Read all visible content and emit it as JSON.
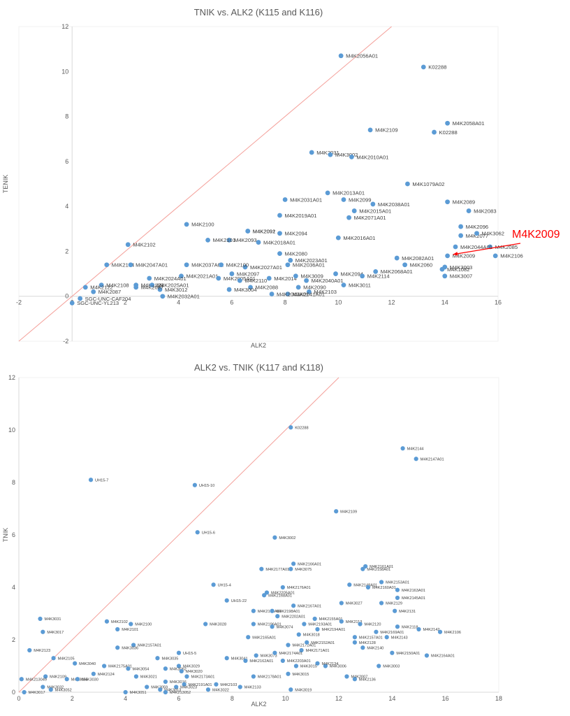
{
  "chart_data": [
    {
      "type": "scatter",
      "title": "TNIK vs. ALK2 (K115 and K116)",
      "xlabel": "ALK2",
      "ylabel": "TENIK",
      "xlim": [
        -2,
        16
      ],
      "ylim": [
        -2,
        12
      ],
      "xticks": [
        "-2",
        "0",
        "2",
        "4",
        "6",
        "8",
        "10",
        "12",
        "14",
        "16"
      ],
      "yticks": [
        "-2",
        "0",
        "2",
        "4",
        "6",
        "8",
        "10",
        "12"
      ],
      "grid": false,
      "legend": "none",
      "reference_line": "y = x",
      "marker_color": "#5b9bd5",
      "line_color": "#f4a09a",
      "annotation": {
        "text": "M4K2009",
        "color": "#ff0000",
        "x": 14.1,
        "y": 1.8
      },
      "points": [
        {
          "x": 10.1,
          "y": 10.7,
          "label": "M4K2056A01"
        },
        {
          "x": 13.2,
          "y": 10.2,
          "label": "K02288"
        },
        {
          "x": 14.1,
          "y": 7.7,
          "label": "M4K2058A01"
        },
        {
          "x": 11.2,
          "y": 7.4,
          "label": "M4K2109"
        },
        {
          "x": 13.6,
          "y": 7.3,
          "label": "K02288"
        },
        {
          "x": 9.0,
          "y": 6.4,
          "label": "M4K2031"
        },
        {
          "x": 9.7,
          "y": 6.3,
          "label": "M4K3002"
        },
        {
          "x": 10.5,
          "y": 6.2,
          "label": "M4K2010A01"
        },
        {
          "x": 12.6,
          "y": 5.0,
          "label": "M4K1079A02"
        },
        {
          "x": 9.6,
          "y": 4.6,
          "label": "M4K2013A01"
        },
        {
          "x": 8.0,
          "y": 4.3,
          "label": "M4K2031A01"
        },
        {
          "x": 10.2,
          "y": 4.3,
          "label": "M4K2099"
        },
        {
          "x": 14.1,
          "y": 4.2,
          "label": "M4K2089"
        },
        {
          "x": 11.3,
          "y": 4.1,
          "label": "M4K2038A01"
        },
        {
          "x": 10.6,
          "y": 3.8,
          "label": "M4K2015A01"
        },
        {
          "x": 14.9,
          "y": 3.8,
          "label": "M4K2083"
        },
        {
          "x": 7.8,
          "y": 3.6,
          "label": "M4K2019A01"
        },
        {
          "x": 10.4,
          "y": 3.5,
          "label": "M4K2071A01"
        },
        {
          "x": 4.3,
          "y": 3.2,
          "label": "M4K2100"
        },
        {
          "x": 6.6,
          "y": 2.9,
          "label": "M4K2092"
        },
        {
          "x": 6.6,
          "y": 2.9,
          "label": "M4K2091"
        },
        {
          "x": 7.8,
          "y": 2.8,
          "label": "M4K2094"
        },
        {
          "x": 14.6,
          "y": 3.1,
          "label": "M4K2096"
        },
        {
          "x": 5.9,
          "y": 2.5,
          "label": "M4K2093"
        },
        {
          "x": 10.0,
          "y": 2.6,
          "label": "M4K2016A01"
        },
        {
          "x": 14.6,
          "y": 2.7,
          "label": "M4K2077"
        },
        {
          "x": 5.1,
          "y": 2.5,
          "label": "M4K2101"
        },
        {
          "x": 7.0,
          "y": 2.4,
          "label": "M4K2018A01"
        },
        {
          "x": 15.2,
          "y": 2.8,
          "label": "M4K3062"
        },
        {
          "x": 2.1,
          "y": 2.3,
          "label": "M4K2102"
        },
        {
          "x": 15.7,
          "y": 2.2,
          "label": "M4K2085"
        },
        {
          "x": 14.4,
          "y": 2.2,
          "label": "M4K2044A01"
        },
        {
          "x": 15.9,
          "y": 1.8,
          "label": "M4K2106"
        },
        {
          "x": 7.8,
          "y": 1.9,
          "label": "M4K2080"
        },
        {
          "x": 14.1,
          "y": 1.8,
          "label": "M4K2009"
        },
        {
          "x": 12.2,
          "y": 1.7,
          "label": "M4K2082A01"
        },
        {
          "x": 8.2,
          "y": 1.6,
          "label": "M4K2023A01"
        },
        {
          "x": 12.5,
          "y": 1.4,
          "label": "M4K2060"
        },
        {
          "x": 14.0,
          "y": 1.3,
          "label": "M4K3003"
        },
        {
          "x": 8.1,
          "y": 1.4,
          "label": "M4K2036A01"
        },
        {
          "x": 6.5,
          "y": 1.3,
          "label": "M4K2027A01"
        },
        {
          "x": 13.9,
          "y": 1.2,
          "label": "M4K1082"
        },
        {
          "x": 1.3,
          "y": 1.4,
          "label": "M4K2104"
        },
        {
          "x": 2.2,
          "y": 1.4,
          "label": "M4K2047A01"
        },
        {
          "x": 4.3,
          "y": 1.4,
          "label": "M4K2037A01"
        },
        {
          "x": 5.6,
          "y": 1.4,
          "label": "M4K2100"
        },
        {
          "x": 11.4,
          "y": 1.1,
          "label": "M4K2068A01"
        },
        {
          "x": 9.9,
          "y": 1.0,
          "label": "M4K2094"
        },
        {
          "x": 6.0,
          "y": 1.0,
          "label": "M4K2097"
        },
        {
          "x": 4.1,
          "y": 0.9,
          "label": "M4K2021A01"
        },
        {
          "x": 10.9,
          "y": 0.9,
          "label": "M4K2114"
        },
        {
          "x": 2.9,
          "y": 0.8,
          "label": "M4K2024A01"
        },
        {
          "x": 5.5,
          "y": 0.8,
          "label": "M4K2005A01"
        },
        {
          "x": 7.4,
          "y": 0.8,
          "label": "M4K2014"
        },
        {
          "x": 8.8,
          "y": 0.7,
          "label": "M4K2040A01"
        },
        {
          "x": 14.0,
          "y": 0.9,
          "label": "M4K3007"
        },
        {
          "x": 8.4,
          "y": 0.9,
          "label": "M4K3009"
        },
        {
          "x": 1.1,
          "y": 0.5,
          "label": "M4K2108"
        },
        {
          "x": 2.4,
          "y": 0.5,
          "label": "M4K2129"
        },
        {
          "x": 3.0,
          "y": 0.5,
          "label": "M4K2025A01"
        },
        {
          "x": 6.3,
          "y": 0.7,
          "label": "M4K2110"
        },
        {
          "x": 10.2,
          "y": 0.5,
          "label": "M4K3011"
        },
        {
          "x": 8.5,
          "y": 0.4,
          "label": "M4K2090"
        },
        {
          "x": 0.5,
          "y": 0.4,
          "label": "M4K2122"
        },
        {
          "x": 6.7,
          "y": 0.4,
          "label": "M4K2088"
        },
        {
          "x": 5.9,
          "y": 0.3,
          "label": "M4K3004"
        },
        {
          "x": 3.3,
          "y": 0.3,
          "label": "M4K3012"
        },
        {
          "x": 2.4,
          "y": 0.4,
          "label": "M4K2087"
        },
        {
          "x": 0.8,
          "y": 0.2,
          "label": "M4K2087"
        },
        {
          "x": 8.9,
          "y": 0.2,
          "label": "M4K2103"
        },
        {
          "x": 8.1,
          "y": 0.1,
          "label": "M4K2041A01"
        },
        {
          "x": 7.5,
          "y": 0.1,
          "label": "M4K2043A01"
        },
        {
          "x": 3.4,
          "y": 0.0,
          "label": "M4K2032A01"
        },
        {
          "x": 0.3,
          "y": -0.1,
          "label": "SGC-UNC-CAF204"
        },
        {
          "x": 0.0,
          "y": -0.3,
          "label": "SGC-UNC-YL213"
        }
      ]
    },
    {
      "type": "scatter",
      "title": "ALK2 vs. TNIK (K117 and K118)",
      "xlabel": "ALK2",
      "ylabel": "TNIK",
      "xlim": [
        0,
        18
      ],
      "ylim": [
        0,
        12
      ],
      "xticks": [
        "0",
        "2",
        "4",
        "6",
        "8",
        "10",
        "12",
        "14",
        "16",
        "18"
      ],
      "yticks": [
        "0",
        "2",
        "4",
        "6",
        "8",
        "10",
        "12"
      ],
      "grid": false,
      "legend": "none",
      "reference_line": "y = x",
      "marker_color": "#5b9bd5",
      "line_color": "#f4a09a",
      "points": [
        {
          "x": 10.2,
          "y": 10.1,
          "label": "K02288"
        },
        {
          "x": 14.4,
          "y": 9.3,
          "label": "M4K2144"
        },
        {
          "x": 14.9,
          "y": 8.9,
          "label": "M4K2147A01"
        },
        {
          "x": 2.7,
          "y": 8.1,
          "label": "UH15-7"
        },
        {
          "x": 6.6,
          "y": 7.9,
          "label": "UH15-10"
        },
        {
          "x": 11.9,
          "y": 6.9,
          "label": "M4K2109"
        },
        {
          "x": 6.7,
          "y": 6.1,
          "label": "UH15-6"
        },
        {
          "x": 9.6,
          "y": 5.9,
          "label": "M4K3002"
        },
        {
          "x": 10.3,
          "y": 4.9,
          "label": "M4K2166A01"
        },
        {
          "x": 10.2,
          "y": 4.7,
          "label": "M4K3075"
        },
        {
          "x": 9.1,
          "y": 4.7,
          "label": "M4K2177A01"
        },
        {
          "x": 13.0,
          "y": 4.8,
          "label": "M4K2161A01"
        },
        {
          "x": 12.9,
          "y": 4.7,
          "label": "M4K2158A01"
        },
        {
          "x": 13.6,
          "y": 4.2,
          "label": "M4K2153A01"
        },
        {
          "x": 12.4,
          "y": 4.1,
          "label": "M4K2148A01"
        },
        {
          "x": 13.1,
          "y": 4.0,
          "label": "M4K2160A01"
        },
        {
          "x": 7.3,
          "y": 4.1,
          "label": "UH15-4"
        },
        {
          "x": 9.9,
          "y": 4.0,
          "label": "M4K2176A01"
        },
        {
          "x": 9.3,
          "y": 3.8,
          "label": "M4K2205A01"
        },
        {
          "x": 14.2,
          "y": 3.9,
          "label": "M4K2163A01"
        },
        {
          "x": 9.2,
          "y": 3.7,
          "label": "M4K2168A01"
        },
        {
          "x": 7.8,
          "y": 3.5,
          "label": "UH15-22"
        },
        {
          "x": 14.2,
          "y": 3.6,
          "label": "M4K2145A01"
        },
        {
          "x": 13.6,
          "y": 3.4,
          "label": "M4K2129"
        },
        {
          "x": 12.1,
          "y": 3.4,
          "label": "M4K3027"
        },
        {
          "x": 10.3,
          "y": 3.3,
          "label": "M4K2167A01"
        },
        {
          "x": 8.8,
          "y": 3.1,
          "label": "M4K2195A01"
        },
        {
          "x": 9.5,
          "y": 3.1,
          "label": "M4K2198A01"
        },
        {
          "x": 14.1,
          "y": 3.1,
          "label": "M4K2131"
        },
        {
          "x": 9.7,
          "y": 2.9,
          "label": "M4K2202A01"
        },
        {
          "x": 11.1,
          "y": 2.8,
          "label": "M4K2155A01"
        },
        {
          "x": 12.1,
          "y": 2.7,
          "label": "M4K2113"
        },
        {
          "x": 10.7,
          "y": 2.6,
          "label": "M4K2193A01"
        },
        {
          "x": 8.8,
          "y": 2.6,
          "label": "M4K2196A01"
        },
        {
          "x": 9.5,
          "y": 2.5,
          "label": "M4K3074"
        },
        {
          "x": 3.3,
          "y": 2.7,
          "label": "M4K2102"
        },
        {
          "x": 4.2,
          "y": 2.6,
          "label": "M4K2100"
        },
        {
          "x": 0.8,
          "y": 2.8,
          "label": "M4K3031"
        },
        {
          "x": 7.0,
          "y": 2.6,
          "label": "M4K3028"
        },
        {
          "x": 12.8,
          "y": 2.6,
          "label": "M4K2120"
        },
        {
          "x": 11.2,
          "y": 2.4,
          "label": "M4K2194A01"
        },
        {
          "x": 14.2,
          "y": 2.5,
          "label": "M4K2118"
        },
        {
          "x": 15.0,
          "y": 2.4,
          "label": "M4K2142"
        },
        {
          "x": 15.8,
          "y": 2.3,
          "label": "M4K2106"
        },
        {
          "x": 13.4,
          "y": 2.3,
          "label": "M4K2169A01"
        },
        {
          "x": 3.7,
          "y": 2.4,
          "label": "M4K2101"
        },
        {
          "x": 0.9,
          "y": 2.3,
          "label": "M4K3017"
        },
        {
          "x": 10.5,
          "y": 2.2,
          "label": "M4K3018"
        },
        {
          "x": 12.6,
          "y": 2.1,
          "label": "M4K2157A01"
        },
        {
          "x": 13.8,
          "y": 2.1,
          "label": "M4K2143"
        },
        {
          "x": 8.6,
          "y": 2.1,
          "label": "M4K2165A01"
        },
        {
          "x": 12.6,
          "y": 1.9,
          "label": "M4K2128"
        },
        {
          "x": 10.1,
          "y": 1.8,
          "label": "M4K2172A01"
        },
        {
          "x": 10.8,
          "y": 1.9,
          "label": "M4K2152A01"
        },
        {
          "x": 4.3,
          "y": 1.8,
          "label": "M4K2157A01"
        },
        {
          "x": 3.7,
          "y": 1.7,
          "label": "M4K3036"
        },
        {
          "x": 12.9,
          "y": 1.7,
          "label": "M4K2140"
        },
        {
          "x": 10.6,
          "y": 1.6,
          "label": "M4K2171A01"
        },
        {
          "x": 14.0,
          "y": 1.5,
          "label": "M4K2150A01"
        },
        {
          "x": 15.3,
          "y": 1.4,
          "label": "M4K2164A01"
        },
        {
          "x": 0.4,
          "y": 1.6,
          "label": "M4K2123"
        },
        {
          "x": 6.0,
          "y": 1.5,
          "label": "UH15-5"
        },
        {
          "x": 8.9,
          "y": 1.4,
          "label": "M4K3073"
        },
        {
          "x": 9.6,
          "y": 1.5,
          "label": "M4K2174A01"
        },
        {
          "x": 5.2,
          "y": 1.3,
          "label": "M4K3035"
        },
        {
          "x": 7.8,
          "y": 1.3,
          "label": "M4K3041"
        },
        {
          "x": 1.3,
          "y": 1.3,
          "label": "M4K2105"
        },
        {
          "x": 9.9,
          "y": 1.2,
          "label": "M4K2203A01"
        },
        {
          "x": 2.1,
          "y": 1.1,
          "label": "M4K3040"
        },
        {
          "x": 3.2,
          "y": 1.0,
          "label": "M4K2175A01"
        },
        {
          "x": 6.0,
          "y": 1.0,
          "label": "M4K3029"
        },
        {
          "x": 13.5,
          "y": 1.0,
          "label": "M4K3003"
        },
        {
          "x": 11.5,
          "y": 1.0,
          "label": "M4K3006"
        },
        {
          "x": 11.2,
          "y": 1.1,
          "label": "M4K2134"
        },
        {
          "x": 8.5,
          "y": 1.2,
          "label": "M4K2162A01"
        },
        {
          "x": 10.4,
          "y": 1.0,
          "label": "M4K3015"
        },
        {
          "x": 5.5,
          "y": 0.9,
          "label": "M4K3062"
        },
        {
          "x": 6.1,
          "y": 0.8,
          "label": "M4K3020"
        },
        {
          "x": 10.1,
          "y": 0.7,
          "label": "M4K3015"
        },
        {
          "x": 4.1,
          "y": 0.9,
          "label": "M4K3054"
        },
        {
          "x": 2.8,
          "y": 0.7,
          "label": "M4K2124"
        },
        {
          "x": 4.4,
          "y": 0.6,
          "label": "M4K3021"
        },
        {
          "x": 6.3,
          "y": 0.6,
          "label": "M4K2173A01"
        },
        {
          "x": 8.8,
          "y": 0.6,
          "label": "M4K2178A01"
        },
        {
          "x": 12.3,
          "y": 0.6,
          "label": "M4K2007"
        },
        {
          "x": 12.6,
          "y": 0.5,
          "label": "M4K2136"
        },
        {
          "x": 1.0,
          "y": 0.6,
          "label": "M4K2109"
        },
        {
          "x": 1.8,
          "y": 0.5,
          "label": "M4K3055"
        },
        {
          "x": 0.1,
          "y": 0.5,
          "label": "M4K213049"
        },
        {
          "x": 2.2,
          "y": 0.5,
          "label": "M4K3030"
        },
        {
          "x": 5.5,
          "y": 0.4,
          "label": "M4K3016"
        },
        {
          "x": 7.4,
          "y": 0.3,
          "label": "M4K2103"
        },
        {
          "x": 6.2,
          "y": 0.3,
          "label": "M4K2191A01"
        },
        {
          "x": 4.8,
          "y": 0.2,
          "label": "M4K3059"
        },
        {
          "x": 5.9,
          "y": 0.2,
          "label": "M4K3023"
        },
        {
          "x": 0.9,
          "y": 0.2,
          "label": "M4K3032"
        },
        {
          "x": 1.2,
          "y": 0.1,
          "label": "M4K3052"
        },
        {
          "x": 8.3,
          "y": 0.2,
          "label": "M4K2133"
        },
        {
          "x": 7.1,
          "y": 0.1,
          "label": "M4K3022"
        },
        {
          "x": 10.2,
          "y": 0.1,
          "label": "M4K3019"
        },
        {
          "x": 4.0,
          "y": 0.0,
          "label": "M4K3051"
        },
        {
          "x": 5.3,
          "y": 0.1,
          "label": "M4K3013"
        },
        {
          "x": 5.5,
          "y": 0.0,
          "label": "M4K213052"
        },
        {
          "x": 0.2,
          "y": 0.0,
          "label": "M4K3017"
        }
      ]
    }
  ]
}
